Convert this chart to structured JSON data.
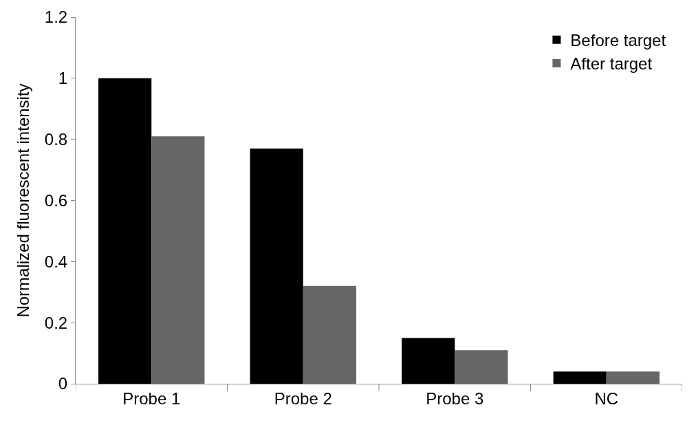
{
  "chart_data": {
    "type": "bar",
    "ylabel": "Normalized fluorescent intensity",
    "categories": [
      "Probe 1",
      "Probe 2",
      "Probe 3",
      "NC"
    ],
    "series": [
      {
        "name": "Before target",
        "color": "#000000",
        "values": [
          1.0,
          0.77,
          0.15,
          0.04
        ]
      },
      {
        "name": "After target",
        "color": "#666666",
        "values": [
          0.81,
          0.32,
          0.11,
          0.04
        ]
      }
    ],
    "ylim": [
      0,
      1.2
    ],
    "yticks": [
      0,
      0.2,
      0.4,
      0.6,
      0.8,
      1,
      1.2
    ],
    "legend": "top right"
  }
}
